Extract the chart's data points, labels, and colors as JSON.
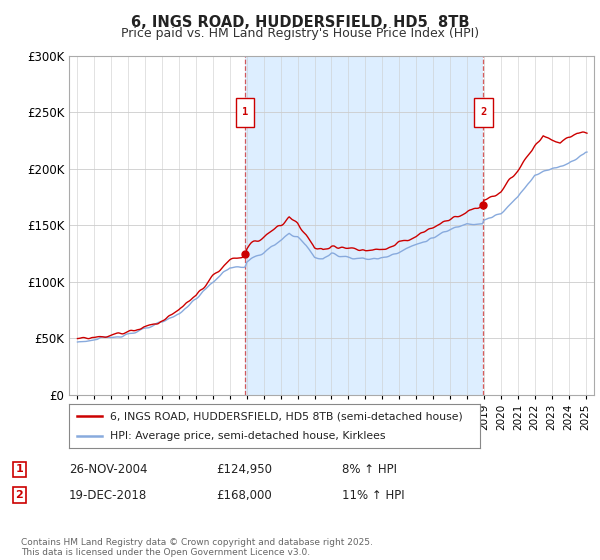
{
  "title": "6, INGS ROAD, HUDDERSFIELD, HD5  8TB",
  "subtitle": "Price paid vs. HM Land Registry's House Price Index (HPI)",
  "ylim": [
    0,
    300000
  ],
  "yticks": [
    0,
    50000,
    100000,
    150000,
    200000,
    250000,
    300000
  ],
  "background_color": "#ffffff",
  "plot_bg_color": "#ddeeff",
  "grid_color": "#cccccc",
  "sale1_date": 2004.9,
  "sale1_price": 124950,
  "sale2_date": 2018.97,
  "sale2_price": 168000,
  "legend_line1": "6, INGS ROAD, HUDDERSFIELD, HD5 8TB (semi-detached house)",
  "legend_line2": "HPI: Average price, semi-detached house, Kirklees",
  "annotation1_date": "26-NOV-2004",
  "annotation1_price": "£124,950",
  "annotation1_hpi": "8% ↑ HPI",
  "annotation2_date": "19-DEC-2018",
  "annotation2_price": "£168,000",
  "annotation2_hpi": "11% ↑ HPI",
  "footer": "Contains HM Land Registry data © Crown copyright and database right 2025.\nThis data is licensed under the Open Government Licence v3.0.",
  "line_color_red": "#cc0000",
  "line_color_blue": "#88aadd",
  "xlim_start": 1994.5,
  "xlim_end": 2025.5
}
